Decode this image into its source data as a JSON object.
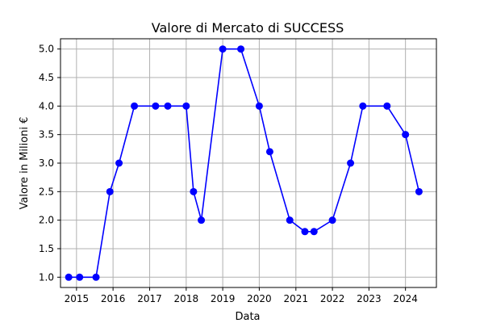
{
  "chart_data": {
    "type": "line",
    "title": "Valore di Mercato di SUCCESS",
    "xlabel": "Data",
    "ylabel": "Valore in Milioni €",
    "x_is_date": true,
    "xlim": [
      "2014-07-25",
      "2024-11-05"
    ],
    "ylim": [
      0.82,
      5.18
    ],
    "x_ticks": [
      "2015",
      "2016",
      "2017",
      "2018",
      "2019",
      "2020",
      "2021",
      "2022",
      "2023",
      "2024"
    ],
    "y_ticks": [
      "1.0",
      "1.5",
      "2.0",
      "2.5",
      "3.0",
      "3.5",
      "4.0",
      "4.5",
      "5.0"
    ],
    "grid": true,
    "series": [
      {
        "color": "#0000ff",
        "marker": "circle",
        "points": [
          {
            "x": "2014-10-15",
            "y": 1.0
          },
          {
            "x": "2015-02-01",
            "y": 1.0
          },
          {
            "x": "2015-07-15",
            "y": 1.0
          },
          {
            "x": "2015-12-01",
            "y": 2.5
          },
          {
            "x": "2016-03-01",
            "y": 3.0
          },
          {
            "x": "2016-08-01",
            "y": 4.0
          },
          {
            "x": "2017-03-01",
            "y": 4.0
          },
          {
            "x": "2017-07-01",
            "y": 4.0
          },
          {
            "x": "2018-01-01",
            "y": 4.0
          },
          {
            "x": "2018-03-15",
            "y": 2.5
          },
          {
            "x": "2018-06-01",
            "y": 2.0
          },
          {
            "x": "2019-01-01",
            "y": 5.0
          },
          {
            "x": "2019-07-01",
            "y": 5.0
          },
          {
            "x": "2020-01-01",
            "y": 4.0
          },
          {
            "x": "2020-04-15",
            "y": 3.2
          },
          {
            "x": "2020-11-01",
            "y": 2.0
          },
          {
            "x": "2021-04-01",
            "y": 1.8
          },
          {
            "x": "2021-07-01",
            "y": 1.8
          },
          {
            "x": "2022-01-01",
            "y": 2.0
          },
          {
            "x": "2022-07-01",
            "y": 3.0
          },
          {
            "x": "2022-11-01",
            "y": 4.0
          },
          {
            "x": "2023-07-01",
            "y": 4.0
          },
          {
            "x": "2024-01-01",
            "y": 3.5
          },
          {
            "x": "2024-05-15",
            "y": 2.5
          }
        ]
      }
    ]
  }
}
